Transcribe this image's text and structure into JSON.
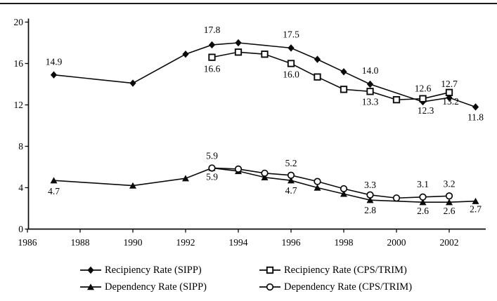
{
  "page": {
    "background": "#ffffff",
    "top_rule_color": "#1c1c1c",
    "ink_color": "#000000"
  },
  "chart_data": {
    "type": "line",
    "title": "",
    "xlabel": "",
    "ylabel": "",
    "grid": false,
    "legend_position": "bottom",
    "x_axis": {
      "range": [
        1986,
        2003.6
      ],
      "ticks": [
        1986,
        1988,
        1990,
        1992,
        1994,
        1996,
        1998,
        2000,
        2002
      ]
    },
    "y_axis": {
      "range": [
        0,
        20
      ],
      "ticks": [
        0,
        4,
        8,
        12,
        16,
        20
      ]
    },
    "colors": {
      "line": "#0a0a0a",
      "open_marker_fill": "#ffffff"
    },
    "series": [
      {
        "name": "Recipiency Rate (SIPP)",
        "marker": "filled-diamond-icon",
        "points": [
          {
            "x": 1987,
            "y": 14.9,
            "label": "14.9",
            "label_pos": "above",
            "dy": -4
          },
          {
            "x": 1990,
            "y": 14.1
          },
          {
            "x": 1992,
            "y": 16.9
          },
          {
            "x": 1993,
            "y": 17.8,
            "label": "17.8",
            "label_pos": "above",
            "dy": -7
          },
          {
            "x": 1994,
            "y": 18.0
          },
          {
            "x": 1996,
            "y": 17.5,
            "label": "17.5",
            "label_pos": "above",
            "dy": -5
          },
          {
            "x": 1997,
            "y": 16.4
          },
          {
            "x": 1998,
            "y": 15.2
          },
          {
            "x": 1999,
            "y": 14.0,
            "label": "14.0",
            "label_pos": "above",
            "dy": -5
          },
          {
            "x": 2001,
            "y": 12.3,
            "label": "12.3",
            "label_pos": "below",
            "dx": 4
          },
          {
            "x": 2002,
            "y": 12.7,
            "label": "12.7",
            "label_pos": "above",
            "dy": -5
          },
          {
            "x": 2003,
            "y": 11.8,
            "label": "11.8",
            "label_pos": "below",
            "dy": 2
          }
        ]
      },
      {
        "name": "Recipiency Rate (CPS/TRIM)",
        "marker": "open-square-icon",
        "points": [
          {
            "x": 1993,
            "y": 16.6,
            "label": "16.6",
            "label_pos": "below",
            "dy": 4
          },
          {
            "x": 1994,
            "y": 17.1
          },
          {
            "x": 1995,
            "y": 16.9
          },
          {
            "x": 1996,
            "y": 16.0,
            "label": "16.0",
            "label_pos": "below",
            "dy": 3
          },
          {
            "x": 1997,
            "y": 14.7
          },
          {
            "x": 1998,
            "y": 13.5
          },
          {
            "x": 1999,
            "y": 13.3,
            "label": "13.3",
            "label_pos": "below",
            "dy": 2
          },
          {
            "x": 2000,
            "y": 12.5
          },
          {
            "x": 2001,
            "y": 12.6,
            "label": "12.6",
            "label_pos": "above"
          },
          {
            "x": 2002,
            "y": 13.2,
            "label": "13.2",
            "label_pos": "below",
            "dx": 2
          }
        ]
      },
      {
        "name": "Dependency Rate (SIPP)",
        "marker": "filled-triangle-icon",
        "points": [
          {
            "x": 1987,
            "y": 4.7,
            "label": "4.7",
            "label_pos": "below",
            "dy": 3
          },
          {
            "x": 1990,
            "y": 4.2
          },
          {
            "x": 1992,
            "y": 4.9
          },
          {
            "x": 1993,
            "y": 5.9,
            "label": "5.9",
            "label_pos": "below"
          },
          {
            "x": 1994,
            "y": 5.6
          },
          {
            "x": 1995,
            "y": 5.0
          },
          {
            "x": 1996,
            "y": 4.7,
            "label": "4.7",
            "label_pos": "below",
            "dy": 2
          },
          {
            "x": 1997,
            "y": 4.0
          },
          {
            "x": 1998,
            "y": 3.4
          },
          {
            "x": 1999,
            "y": 2.8,
            "label": "2.8",
            "label_pos": "below",
            "dy": 2
          },
          {
            "x": 2001,
            "y": 2.6,
            "label": "2.6",
            "label_pos": "below"
          },
          {
            "x": 2002,
            "y": 2.6,
            "label": "2.6",
            "label_pos": "below"
          },
          {
            "x": 2003,
            "y": 2.7,
            "label": "2.7",
            "label_pos": "below",
            "dy": -1
          }
        ]
      },
      {
        "name": "Dependency Rate (CPS/TRIM)",
        "marker": "open-circle-icon",
        "points": [
          {
            "x": 1993,
            "y": 5.9,
            "label": "5.9",
            "label_pos": "above",
            "dy": -3
          },
          {
            "x": 1994,
            "y": 5.8
          },
          {
            "x": 1995,
            "y": 5.4
          },
          {
            "x": 1996,
            "y": 5.2,
            "label": "5.2",
            "label_pos": "above",
            "dy": -3
          },
          {
            "x": 1997,
            "y": 4.6
          },
          {
            "x": 1998,
            "y": 3.9
          },
          {
            "x": 1999,
            "y": 3.3,
            "label": "3.3",
            "label_pos": "above"
          },
          {
            "x": 2000,
            "y": 3.0
          },
          {
            "x": 2001,
            "y": 3.1,
            "label": "3.1",
            "label_pos": "above",
            "dy": -4
          },
          {
            "x": 2002,
            "y": 3.2,
            "label": "3.2",
            "label_pos": "above",
            "dy": -3
          }
        ]
      }
    ]
  }
}
